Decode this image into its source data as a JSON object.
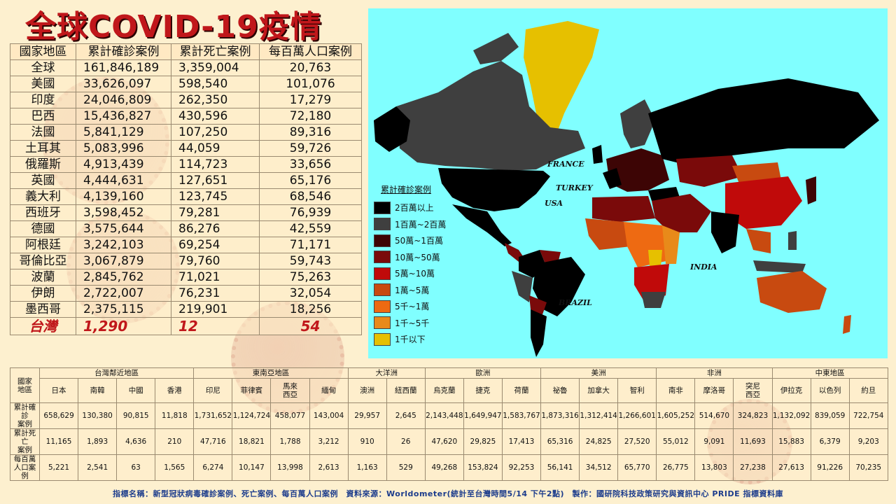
{
  "title": "全球COVID-19疫情",
  "top_table": {
    "headers": [
      "國家地區",
      "累計確診案例",
      "累計死亡案例",
      "每百萬人口案例"
    ],
    "rows": [
      {
        "country": "全球",
        "cases": "161,846,189",
        "deaths": "3,359,004",
        "per_million": "20,763"
      },
      {
        "country": "美國",
        "cases": "33,626,097",
        "deaths": "598,540",
        "per_million": "101,076"
      },
      {
        "country": "印度",
        "cases": "24,046,809",
        "deaths": "262,350",
        "per_million": "17,279"
      },
      {
        "country": "巴西",
        "cases": "15,436,827",
        "deaths": "430,596",
        "per_million": "72,180"
      },
      {
        "country": "法國",
        "cases": "5,841,129",
        "deaths": "107,250",
        "per_million": "89,316"
      },
      {
        "country": "土耳其",
        "cases": "5,083,996",
        "deaths": "44,059",
        "per_million": "59,726"
      },
      {
        "country": "俄羅斯",
        "cases": "4,913,439",
        "deaths": "114,723",
        "per_million": "33,656"
      },
      {
        "country": "英國",
        "cases": "4,444,631",
        "deaths": "127,651",
        "per_million": "65,176"
      },
      {
        "country": "義大利",
        "cases": "4,139,160",
        "deaths": "123,745",
        "per_million": "68,546"
      },
      {
        "country": "西班牙",
        "cases": "3,598,452",
        "deaths": "79,281",
        "per_million": "76,939"
      },
      {
        "country": "德國",
        "cases": "3,575,644",
        "deaths": "86,276",
        "per_million": "42,559"
      },
      {
        "country": "阿根廷",
        "cases": "3,242,103",
        "deaths": "69,254",
        "per_million": "71,171"
      },
      {
        "country": "哥倫比亞",
        "cases": "3,067,879",
        "deaths": "79,760",
        "per_million": "59,743"
      },
      {
        "country": "波蘭",
        "cases": "2,845,762",
        "deaths": "71,021",
        "per_million": "75,263"
      },
      {
        "country": "伊朗",
        "cases": "2,722,007",
        "deaths": "76,231",
        "per_million": "32,054"
      },
      {
        "country": "墨西哥",
        "cases": "2,375,115",
        "deaths": "219,901",
        "per_million": "18,256"
      }
    ],
    "taiwan": {
      "country": "台灣",
      "cases": "1,290",
      "deaths": "12",
      "per_million": "54"
    }
  },
  "map": {
    "legend_title": "累計確診案例",
    "legend": [
      {
        "label": "2百萬以上",
        "color": "#000000"
      },
      {
        "label": "1百萬~2百萬",
        "color": "#3f3f3f"
      },
      {
        "label": "50萬~1百萬",
        "color": "#3d0505"
      },
      {
        "label": "10萬~50萬",
        "color": "#7a0a0a"
      },
      {
        "label": "5萬~10萬",
        "color": "#c00a0a"
      },
      {
        "label": "1萬~5萬",
        "color": "#c84a10"
      },
      {
        "label": "5千~1萬",
        "color": "#ee6a12"
      },
      {
        "label": "1千~5千",
        "color": "#e88a1a"
      },
      {
        "label": "1千以下",
        "color": "#e6c000"
      }
    ],
    "labels": {
      "france": "FRANCE",
      "turkey": "TURKEY",
      "usa": "USA",
      "india": "INDIA",
      "brazil": "BRAZIL"
    },
    "ocean_color": "#80ffff"
  },
  "bottom_table": {
    "corner": "國家\n地區",
    "regions": [
      {
        "name": "台灣鄰近地區",
        "span": 4
      },
      {
        "name": "東南亞地區",
        "span": 4
      },
      {
        "name": "大洋洲",
        "span": 2
      },
      {
        "name": "歐洲",
        "span": 3
      },
      {
        "name": "美洲",
        "span": 3
      },
      {
        "name": "非洲",
        "span": 3
      },
      {
        "name": "中東地區",
        "span": 3
      }
    ],
    "countries": [
      "日本",
      "南韓",
      "中國",
      "香港",
      "印尼",
      "菲律賓",
      "馬來\n西亞",
      "緬甸",
      "澳洲",
      "紐西蘭",
      "烏克蘭",
      "捷克",
      "荷蘭",
      "祕魯",
      "加拿大",
      "智利",
      "南非",
      "摩洛哥",
      "突尼\n西亞",
      "伊拉克",
      "以色列",
      "約旦"
    ],
    "row_labels": [
      "累計確診\n案例",
      "累計死亡\n案例",
      "每百萬\n人口案例"
    ],
    "cases": [
      "658,629",
      "130,380",
      "90,815",
      "11,818",
      "1,731,652",
      "1,124,724",
      "458,077",
      "143,004",
      "29,957",
      "2,645",
      "2,143,448",
      "1,649,947",
      "1,583,767",
      "1,873,316",
      "1,312,414",
      "1,266,601",
      "1,605,252",
      "514,670",
      "324,823",
      "1,132,092",
      "839,059",
      "722,754"
    ],
    "deaths": [
      "11,165",
      "1,893",
      "4,636",
      "210",
      "47,716",
      "18,821",
      "1,788",
      "3,212",
      "910",
      "26",
      "47,620",
      "29,825",
      "17,413",
      "65,316",
      "24,825",
      "27,520",
      "55,012",
      "9,091",
      "11,693",
      "15,883",
      "6,379",
      "9,203"
    ],
    "per_million": [
      "5,221",
      "2,541",
      "63",
      "1,565",
      "6,274",
      "10,147",
      "13,998",
      "2,613",
      "1,163",
      "529",
      "49,268",
      "153,824",
      "92,253",
      "56,141",
      "34,512",
      "65,770",
      "26,775",
      "13,803",
      "27,238",
      "27,613",
      "91,226",
      "70,235"
    ]
  },
  "footer": "指標名稱：新型冠狀病毒確診案例、死亡案例、每百萬人口案例　資料來源：Worldometer(統計至台灣時間5/14 下午2點)　製作：國研院科技政策研究與資訊中心 PRIDE 指標資料庫"
}
